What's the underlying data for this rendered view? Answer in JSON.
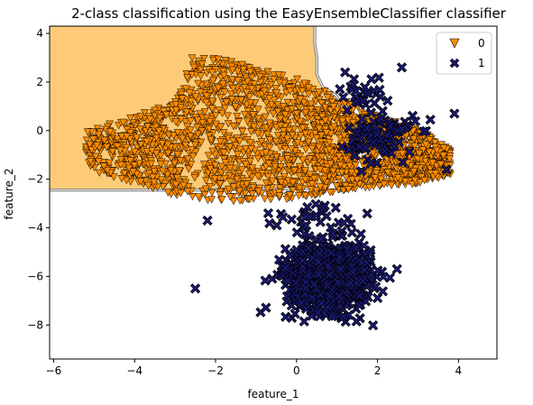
{
  "chart_data": {
    "type": "scatter",
    "title": "2-class classification using the EasyEnsembleClassifier classifier",
    "xlabel": "feature_1",
    "ylabel": "feature_2",
    "xlim": [
      -6.1,
      4.95
    ],
    "ylim": [
      -9.4,
      4.3
    ],
    "x_ticks": [
      -6,
      -4,
      -2,
      0,
      2,
      4
    ],
    "y_ticks": [
      -8,
      -6,
      -4,
      -2,
      0,
      2,
      4
    ],
    "x_tick_labels": [
      "−6",
      "−4",
      "−2",
      "0",
      "2",
      "4"
    ],
    "y_tick_labels": [
      "−8",
      "−6",
      "−4",
      "−2",
      "0",
      "2",
      "4"
    ],
    "legend": {
      "position": "top-right",
      "entries": [
        "0",
        "1"
      ]
    },
    "grid": false,
    "decision_region": {
      "class": "0",
      "color": "#FDCB78",
      "boundary": [
        [
          -6.1,
          -2.45
        ],
        [
          -2.5,
          -2.45
        ],
        [
          -1.5,
          -2.42
        ],
        [
          0.4,
          -2.38
        ],
        [
          0.65,
          -2.35
        ],
        [
          0.75,
          -2.1
        ],
        [
          0.9,
          -1.9
        ],
        [
          1.1,
          -1.85
        ],
        [
          1.25,
          -1.7
        ],
        [
          1.4,
          -1.4
        ],
        [
          1.5,
          -1.0
        ],
        [
          1.55,
          -0.6
        ],
        [
          1.45,
          -0.3
        ],
        [
          1.4,
          0.2
        ],
        [
          1.35,
          0.6
        ],
        [
          1.3,
          0.9
        ],
        [
          1.1,
          1.1
        ],
        [
          1.0,
          1.4
        ],
        [
          0.85,
          1.6
        ],
        [
          0.65,
          1.8
        ],
        [
          0.5,
          2.3
        ],
        [
          0.5,
          3.0
        ],
        [
          0.45,
          3.6
        ],
        [
          0.45,
          4.3
        ],
        [
          -6.1,
          4.3
        ]
      ]
    },
    "series": [
      {
        "name": "0",
        "marker": "triangle-down",
        "color": "#FF8C00",
        "edge_color": "#000000",
        "count": 2200,
        "distribution": {
          "x_range": [
            -5.2,
            3.8
          ],
          "upper_edge": [
            [
              -5.2,
              0.0
            ],
            [
              -4.0,
              0.6
            ],
            [
              -3.0,
              1.2
            ],
            [
              -2.6,
              3.0
            ],
            [
              -2.0,
              3.0
            ],
            [
              -1.0,
              2.6
            ],
            [
              0.0,
              2.2
            ],
            [
              1.0,
              1.4
            ],
            [
              2.0,
              0.6
            ],
            [
              3.0,
              0.1
            ],
            [
              3.8,
              -0.8
            ]
          ],
          "lower_edge": [
            [
              -5.2,
              -1.6
            ],
            [
              -4.0,
              -2.2
            ],
            [
              -3.0,
              -2.7
            ],
            [
              -2.0,
              -2.9
            ],
            [
              -1.0,
              -2.9
            ],
            [
              0.0,
              -2.8
            ],
            [
              1.0,
              -2.5
            ],
            [
              2.0,
              -2.3
            ],
            [
              3.0,
              -2.2
            ],
            [
              3.8,
              -1.8
            ]
          ]
        }
      },
      {
        "name": "1",
        "marker": "x",
        "color": "#191970",
        "edge_color": "#000000",
        "clusters": [
          {
            "count": 780,
            "center": [
              0.8,
              -6.0
            ],
            "spread": [
              0.75,
              1.0
            ]
          },
          {
            "count": 90,
            "center": [
              2.1,
              -0.2
            ],
            "spread": [
              0.6,
              0.8
            ]
          },
          {
            "count": 25,
            "center": [
              1.6,
              1.5
            ],
            "spread": [
              0.4,
              0.5
            ]
          },
          {
            "count": 30,
            "center": [
              0.5,
              -3.5
            ],
            "spread": [
              0.9,
              0.4
            ]
          }
        ],
        "outliers": [
          [
            -2.5,
            -6.5
          ],
          [
            -2.2,
            -3.7
          ],
          [
            3.9,
            0.7
          ],
          [
            2.6,
            2.6
          ],
          [
            1.2,
            2.4
          ],
          [
            3.7,
            -1.6
          ]
        ]
      }
    ]
  }
}
